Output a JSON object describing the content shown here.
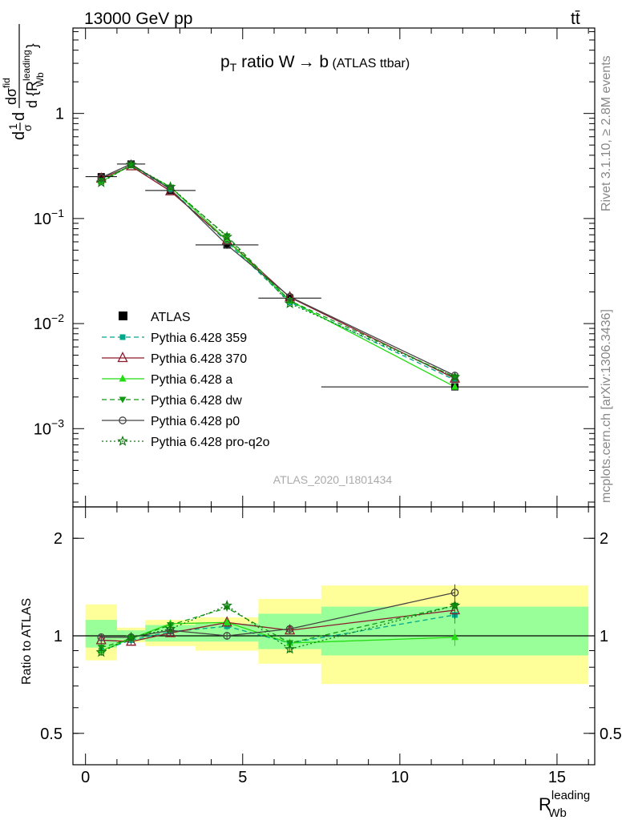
{
  "header": {
    "energy_label": "13000 GeV pp",
    "process_label": "tt̄"
  },
  "side_labels": {
    "rivet": "Rivet 3.1.10, ≥ 2.8M events",
    "mcplots": "mcplots.cern.ch [arXiv:1306.3436]"
  },
  "watermark": "ATLAS_2020_I1801434",
  "colors": {
    "data": "#000000",
    "p359": "#00a88a",
    "p370": "#8b1a2b",
    "pa": "#22dd11",
    "pdw": "#119911",
    "pp0": "#444444",
    "pq2o": "#117711",
    "band_stat": "#99ff99",
    "band_total": "#ffff99"
  },
  "chart_data": [
    {
      "type": "line",
      "panel": "main",
      "title_parts": {
        "p": "p",
        "sub_t": "T",
        "rest": " ratio W",
        "arrow": "→",
        "b": " b",
        "small": " (ATLAS ttbar)"
      },
      "ylabel_parts": {
        "d1": "d",
        "frac_num": "1",
        "sigma": "σ",
        "d2": "d",
        "num": "dσ",
        "num_sup": "fid",
        "den": "d {R",
        "den_sup": "leading",
        "den_sub": "Wb",
        "den_close": "}"
      },
      "yscale": "log",
      "ylim": [
        0.00018,
        6.5
      ],
      "xlim": [
        -0.4,
        16.2
      ],
      "y_ticks": [
        {
          "value": 1,
          "label": "1"
        },
        {
          "value": 0.1,
          "label": "10",
          "exp": "−1"
        },
        {
          "value": 0.01,
          "label": "10",
          "exp": "−2"
        },
        {
          "value": 0.001,
          "label": "10",
          "exp": "−3"
        }
      ],
      "x": [
        0.5,
        1.45,
        2.7,
        4.5,
        6.5,
        11.75
      ],
      "data_series": {
        "name": "ATLAS",
        "values": [
          0.25,
          0.33,
          0.185,
          0.056,
          0.0175,
          0.0025
        ],
        "xerr": [
          0.5,
          0.45,
          0.8,
          1.0,
          1.0,
          4.25
        ]
      },
      "series": [
        {
          "key": "p359",
          "name": "Pythia 6.428 359",
          "values": [
            0.225,
            0.32,
            0.19,
            0.06,
            0.016,
            0.0029
          ],
          "style": "dashed",
          "marker": "square"
        },
        {
          "key": "p370",
          "name": "Pythia 6.428 370",
          "values": [
            0.24,
            0.315,
            0.182,
            0.062,
            0.0178,
            0.003
          ],
          "style": "solid",
          "marker": "triangle-open"
        },
        {
          "key": "pa",
          "name": "Pythia 6.428 a",
          "values": [
            0.225,
            0.32,
            0.2,
            0.062,
            0.0165,
            0.0025
          ],
          "style": "solid",
          "marker": "triangle"
        },
        {
          "key": "pdw",
          "name": "Pythia 6.428 dw",
          "values": [
            0.228,
            0.322,
            0.198,
            0.068,
            0.0165,
            0.0031
          ],
          "style": "dashed",
          "marker": "triangle-down"
        },
        {
          "key": "pp0",
          "name": "Pythia 6.428 p0",
          "values": [
            0.245,
            0.33,
            0.19,
            0.056,
            0.018,
            0.0032
          ],
          "style": "solid",
          "marker": "circle-open"
        },
        {
          "key": "pq2o",
          "name": "Pythia 6.428 pro-q2o",
          "values": [
            0.22,
            0.325,
            0.2,
            0.067,
            0.0155,
            0.0031
          ],
          "style": "dotted",
          "marker": "star-open"
        }
      ]
    },
    {
      "type": "line",
      "panel": "ratio",
      "ylabel": "Ratio to ATLAS",
      "xlabel_parts": {
        "R": "R",
        "sup": "leading",
        "sub": "Wb"
      },
      "yscale": "log",
      "ylim": [
        0.4,
        2.5
      ],
      "xlim": [
        -0.4,
        16.2
      ],
      "y_ticks": [
        {
          "value": 2,
          "label": "2"
        },
        {
          "value": 1,
          "label": "1"
        },
        {
          "value": 0.5,
          "label": "0.5"
        }
      ],
      "x_ticks": [
        {
          "value": 0,
          "label": "0"
        },
        {
          "value": 5,
          "label": "5"
        },
        {
          "value": 10,
          "label": "10"
        },
        {
          "value": 15,
          "label": "15"
        }
      ],
      "bands": [
        {
          "x0": 0,
          "x1": 1,
          "total": [
            0.84,
            1.25
          ],
          "stat": [
            0.92,
            1.12
          ]
        },
        {
          "x0": 1,
          "x1": 1.9,
          "total": [
            0.955,
            1.06
          ],
          "stat": [
            0.97,
            1.04
          ]
        },
        {
          "x0": 1.9,
          "x1": 3.5,
          "total": [
            0.93,
            1.12
          ],
          "stat": [
            0.96,
            1.08
          ]
        },
        {
          "x0": 3.5,
          "x1": 5.5,
          "total": [
            0.9,
            1.14
          ],
          "stat": [
            0.96,
            1.09
          ]
        },
        {
          "x0": 5.5,
          "x1": 7.5,
          "total": [
            0.82,
            1.3
          ],
          "stat": [
            0.91,
            1.17
          ]
        },
        {
          "x0": 7.5,
          "x1": 16,
          "total": [
            0.71,
            1.43
          ],
          "stat": [
            0.87,
            1.23
          ]
        }
      ],
      "x": [
        0.5,
        1.45,
        2.7,
        4.5,
        6.5,
        11.75
      ],
      "series": [
        {
          "key": "p359",
          "values": [
            0.9,
            0.97,
            1.03,
            1.07,
            0.95,
            1.16
          ],
          "style": "dashed",
          "marker": "square"
        },
        {
          "key": "p370",
          "values": [
            0.97,
            0.96,
            1.02,
            1.1,
            1.04,
            1.2
          ],
          "style": "solid",
          "marker": "triangle-open"
        },
        {
          "key": "pa",
          "values": [
            0.9,
            0.98,
            1.09,
            1.1,
            0.95,
            0.99
          ],
          "style": "solid",
          "marker": "triangle"
        },
        {
          "key": "pdw",
          "values": [
            0.92,
            0.98,
            1.08,
            1.22,
            0.95,
            1.24
          ],
          "style": "dashed",
          "marker": "triangle-down"
        },
        {
          "key": "pp0",
          "values": [
            0.99,
            0.99,
            1.04,
            1.0,
            1.05,
            1.36
          ],
          "style": "solid",
          "marker": "circle-open"
        },
        {
          "key": "pq2o",
          "values": [
            0.89,
            0.99,
            1.05,
            1.24,
            0.91,
            1.24
          ],
          "style": "dotted",
          "marker": "star-open"
        }
      ]
    }
  ]
}
